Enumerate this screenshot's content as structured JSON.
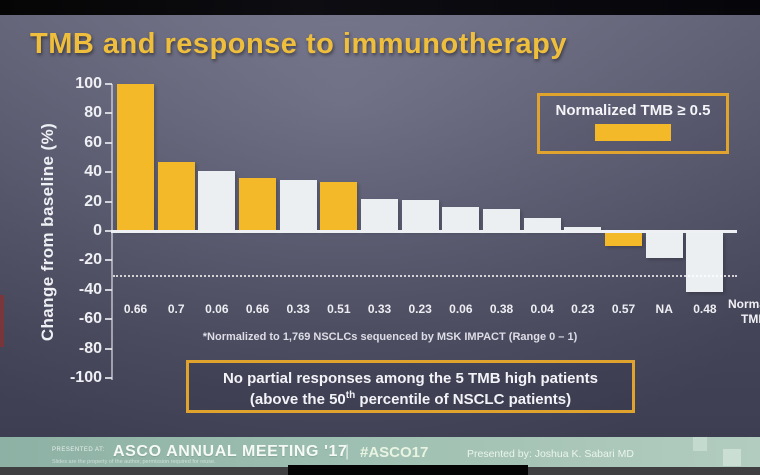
{
  "title": "TMB and response to immunotherapy",
  "chart_data": {
    "type": "bar",
    "title": "TMB and response to immunotherapy",
    "ylabel": "Change from baseline (%)",
    "ylim": [
      -100,
      100
    ],
    "yticks": [
      100,
      80,
      60,
      40,
      20,
      0,
      -20,
      -40,
      -60,
      -80,
      -100
    ],
    "grid": false,
    "legend_label": "Normalized TMB ≥ 0.5",
    "legend_position": "top-right",
    "categories": [
      "0.66",
      "0.7",
      "0.06",
      "0.66",
      "0.33",
      "0.51",
      "0.33",
      "0.23",
      "0.06",
      "0.38",
      "0.04",
      "0.23",
      "0.57",
      "NA",
      "0.48"
    ],
    "values": [
      100,
      47,
      41,
      36,
      35,
      33,
      22,
      21,
      16,
      15,
      9,
      3,
      -9,
      -17,
      -40
    ],
    "tmb_high": [
      true,
      true,
      false,
      true,
      false,
      true,
      false,
      false,
      false,
      false,
      false,
      false,
      true,
      false,
      false
    ],
    "series_colors": {
      "tmb_high": "#f3b929",
      "tmb_low": "#eceff1"
    },
    "reference_line_y": -30,
    "x_axis_note": "*Normalized to 1,769 NSCLCs sequenced by MSK IMPACT (Range 0 – 1)",
    "x_axis_right_label": "Normalized TMB"
  },
  "legend": {
    "label": "Normalized TMB ≥ 0.5"
  },
  "footnote": "*Normalized to 1,769 NSCLCs sequenced by MSK IMPACT (Range 0 – 1)",
  "right_label": {
    "line1": "Normalized",
    "line2": "TMB"
  },
  "callout": {
    "line1": "No partial responses among the 5 TMB high patients",
    "line2_pre": "(above the 50",
    "line2_sup": "th",
    "line2_post": " percentile of NSCLC patients)"
  },
  "footer": {
    "presented_at": "PRESENTED AT:",
    "meeting": "ASCO ANNUAL MEETING '17",
    "separator": "|",
    "hashtag": "#ASCO17",
    "presented_by": "Presented by: Joshua K. Sabari MD",
    "disclaimer": "Slides are the property of the author, permission required for reuse."
  },
  "colors": {
    "title_yellow": "#eebe3c",
    "bar_yellow": "#f3b929",
    "bar_white": "#eceff1",
    "box_border": "#dfa32e",
    "footer_teal": "#9dbfb1",
    "slide_bg": "#5d5d75"
  }
}
